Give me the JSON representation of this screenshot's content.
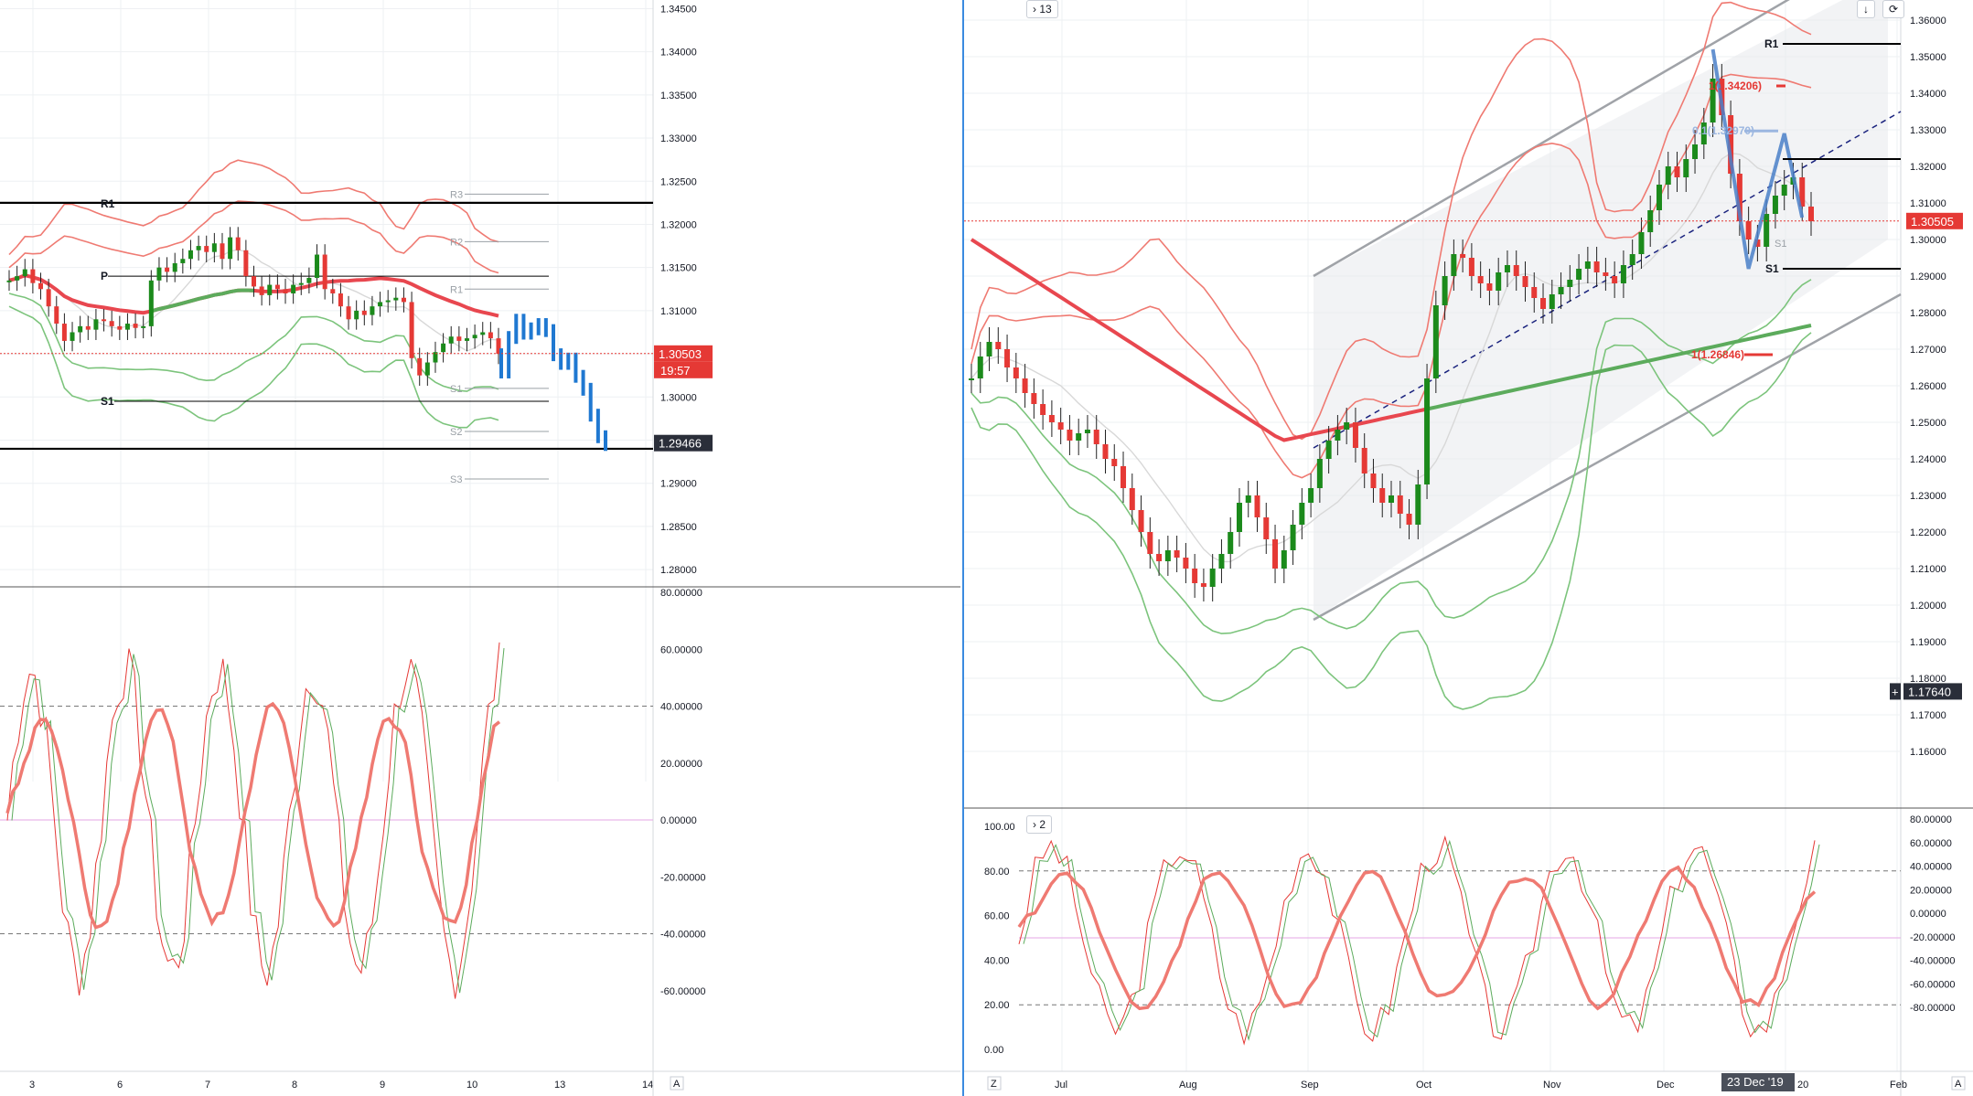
{
  "left_panel": {
    "price_axis": [
      "1.34500",
      "1.34000",
      "1.33500",
      "1.33000",
      "1.32500",
      "1.32000",
      "1.31500",
      "1.31000",
      "1.30500",
      "1.30000",
      "1.29500",
      "1.29000",
      "1.28500",
      "1.28000"
    ],
    "last_price": "1.30503",
    "countdown": "19:57",
    "projection_price": "1.29466",
    "time_axis": [
      "3",
      "6",
      "7",
      "8",
      "9",
      "10",
      "13",
      "14"
    ],
    "pivots": {
      "R3": "R3",
      "R2": "R2",
      "R1": "R1",
      "P": "P",
      "S1": "S1",
      "S2": "S2",
      "S3": "S3"
    },
    "osc_axis": [
      "80.00000",
      "60.00000",
      "40.00000",
      "20.00000",
      "0.00000",
      "-20.00000",
      "-40.00000",
      "-60.00000"
    ],
    "scale_btn": "A"
  },
  "right_panel": {
    "collapse_label": "13",
    "osc_collapse_label": "2",
    "price_axis": [
      "1.36000",
      "1.35000",
      "1.34000",
      "1.33000",
      "1.32000",
      "1.31000",
      "1.30000",
      "1.29000",
      "1.28000",
      "1.27000",
      "1.26000",
      "1.25000",
      "1.24000",
      "1.23000",
      "1.22000",
      "1.21000",
      "1.20000",
      "1.19000",
      "1.18000",
      "1.17000",
      "1.16000"
    ],
    "last_price": "1.30505",
    "crosshair_price": "1.17640",
    "time_axis": [
      "Jul",
      "Aug",
      "Sep",
      "Oct",
      "Nov",
      "Dec",
      "20",
      "Feb"
    ],
    "crosshair_date": "23 Dec '19",
    "pivots": {
      "R1": "R1",
      "S1": "S1",
      "S1_grey": "S1"
    },
    "fib_labels": {
      "top": "1(1.34206)",
      "mid": "0.1(1.32970)",
      "bottom": "1(1.26846)"
    },
    "osc_left_axis": [
      "100.00",
      "80.00",
      "60.00",
      "40.00",
      "20.00",
      "0.00"
    ],
    "osc_right_axis": [
      "80.00000",
      "60.00000",
      "40.00000",
      "20.00000",
      "0.00000",
      "-20.00000",
      "-40.00000",
      "-60.00000",
      "-80.00000"
    ],
    "z_btn": "Z",
    "scale_btn": "A",
    "toolbar_down": "↓",
    "toolbar_loop": "⟳"
  },
  "colors": {
    "up": "#1b8a1b",
    "down": "#e53935",
    "projection": "#1f78d1",
    "band_red": "#ef7a72",
    "band_green": "#7cc47c",
    "ma_red": "#e8474f",
    "ma_green": "#5cab5c",
    "axis_bg": "#ffffff"
  },
  "chart_data": [
    {
      "type": "candlestick",
      "title": "",
      "timeframe": "intraday",
      "x_ticks": [
        "3",
        "6",
        "7",
        "8",
        "9",
        "10",
        "13",
        "14"
      ],
      "ylim": [
        1.278,
        1.346
      ],
      "closes": [
        1.3135,
        1.314,
        1.3148,
        1.3132,
        1.3125,
        1.3105,
        1.3085,
        1.3065,
        1.3075,
        1.3082,
        1.3078,
        1.309,
        1.3088,
        1.3082,
        1.3078,
        1.3085,
        1.308,
        1.3082,
        1.3135,
        1.315,
        1.3145,
        1.3155,
        1.316,
        1.317,
        1.3175,
        1.3168,
        1.3178,
        1.316,
        1.3185,
        1.317,
        1.314,
        1.3128,
        1.3118,
        1.313,
        1.3125,
        1.312,
        1.313,
        1.3132,
        1.3138,
        1.3165,
        1.3125,
        1.312,
        1.3105,
        1.309,
        1.31,
        1.3095,
        1.3105,
        1.311,
        1.3112,
        1.3115,
        1.311,
        1.3045,
        1.3025,
        1.304,
        1.3052,
        1.3062,
        1.307,
        1.3065,
        1.3068,
        1.3072,
        1.3075,
        1.3068,
        1.305
      ],
      "projection": [
        1.303,
        1.307,
        1.309,
        1.3075,
        1.308,
        1.3085,
        1.3078,
        1.305,
        1.304,
        1.3045,
        1.3025,
        1.301,
        1.298,
        1.2955,
        1.2946
      ],
      "pivots": {
        "R3": 1.3235,
        "R2": 1.318,
        "R1": 1.3125,
        "P": 1.314,
        "S1": 1.2995,
        "S2": 1.296,
        "S3": 1.2905
      },
      "horizontal_lines": [
        1.3225,
        1.294
      ],
      "last_price": 1.30503
    },
    {
      "type": "oscillator",
      "ylim": [
        -80,
        80
      ],
      "levels": [
        40,
        0,
        -40
      ],
      "title": ""
    },
    {
      "type": "candlestick",
      "title": "",
      "timeframe": "daily",
      "x_ticks": [
        "Jul",
        "Aug",
        "Sep",
        "Oct",
        "Nov",
        "Dec",
        "20",
        "Feb"
      ],
      "ylim": [
        1.155,
        1.365
      ],
      "closes": [
        1.262,
        1.268,
        1.272,
        1.27,
        1.265,
        1.262,
        1.258,
        1.255,
        1.252,
        1.25,
        1.248,
        1.245,
        1.247,
        1.248,
        1.244,
        1.24,
        1.238,
        1.232,
        1.226,
        1.22,
        1.214,
        1.212,
        1.215,
        1.213,
        1.21,
        1.206,
        1.205,
        1.21,
        1.214,
        1.22,
        1.228,
        1.23,
        1.224,
        1.218,
        1.21,
        1.215,
        1.222,
        1.228,
        1.232,
        1.24,
        1.245,
        1.248,
        1.25,
        1.243,
        1.236,
        1.232,
        1.228,
        1.23,
        1.225,
        1.222,
        1.233,
        1.262,
        1.282,
        1.29,
        1.296,
        1.295,
        1.29,
        1.288,
        1.286,
        1.291,
        1.293,
        1.29,
        1.287,
        1.284,
        1.281,
        1.285,
        1.287,
        1.289,
        1.292,
        1.294,
        1.291,
        1.29,
        1.288,
        1.293,
        1.296,
        1.302,
        1.308,
        1.315,
        1.32,
        1.317,
        1.322,
        1.326,
        1.332,
        1.344,
        1.334,
        1.318,
        1.305,
        1.3,
        1.298,
        1.307,
        1.312,
        1.315,
        1.317,
        1.309,
        1.305
      ],
      "fib_levels": {
        "top": 1.34206,
        "mid": 1.3297,
        "bottom": 1.26846
      },
      "pivots": {
        "R1": 1.3535,
        "S1": 1.292
      },
      "channel": {
        "upper_start": 1.29,
        "upper_end": 1.372,
        "lower_start": 1.196,
        "lower_end": 1.276
      },
      "last_price": 1.30505,
      "crosshair_price": 1.1764
    },
    {
      "type": "oscillator",
      "ylim": [
        0,
        100
      ],
      "levels": [
        80,
        50,
        20
      ],
      "title": ""
    }
  ]
}
